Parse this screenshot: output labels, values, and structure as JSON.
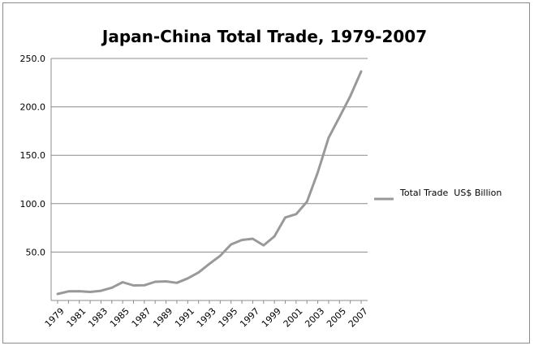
{
  "chart_data": {
    "type": "line",
    "title": "Japan-China Total Trade, 1979-2007",
    "xlabel": "",
    "ylabel": "",
    "x": [
      1979,
      1980,
      1981,
      1982,
      1983,
      1984,
      1985,
      1986,
      1987,
      1988,
      1989,
      1990,
      1991,
      1992,
      1993,
      1994,
      1995,
      1996,
      1997,
      1998,
      1999,
      2000,
      2001,
      2002,
      2003,
      2004,
      2005,
      2006,
      2007
    ],
    "x_tick_labels": [
      "1979",
      "1981",
      "1983",
      "1985",
      "1987",
      "1989",
      "1991",
      "1993",
      "1995",
      "1997",
      "1999",
      "2001",
      "2003",
      "2005",
      "2007"
    ],
    "y_tick_labels": [
      "50.0",
      "100.0",
      "150.0",
      "200.0",
      "250.0"
    ],
    "ylim": [
      0,
      250
    ],
    "grid": true,
    "legend_position": "right",
    "colors": {
      "series": "#999999",
      "grid": "#8c8c8c",
      "axis": "#8c8c8c"
    },
    "series": [
      {
        "name": "Total Trade  US$ Billion",
        "values": [
          6.7,
          9.4,
          9.6,
          8.8,
          10.0,
          13.2,
          18.9,
          15.5,
          15.7,
          19.3,
          19.7,
          18.2,
          22.8,
          28.9,
          37.8,
          46.2,
          57.9,
          62.5,
          63.8,
          57.0,
          66.2,
          85.7,
          89.2,
          101.9,
          132.4,
          168.0,
          189.4,
          211.0,
          236.6
        ]
      }
    ]
  }
}
